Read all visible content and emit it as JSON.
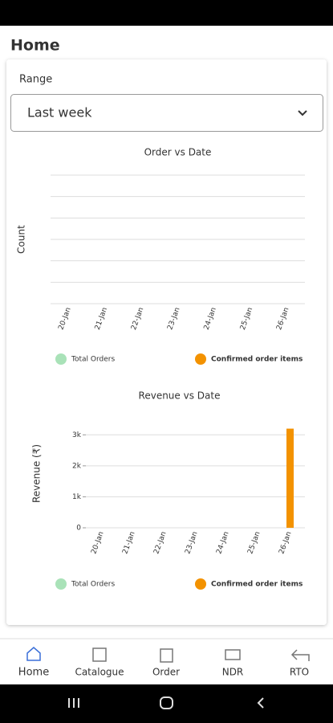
{
  "header": {
    "title": "Home"
  },
  "range": {
    "label": "Range",
    "value": "Last week"
  },
  "chart_data": [
    {
      "type": "bar",
      "title": "Order vs Date",
      "y_label": "Count",
      "categories": [
        "20-Jan",
        "21-Jan",
        "22-Jan",
        "23-Jan",
        "24-Jan",
        "25-Jan",
        "26-Jan"
      ],
      "series": [
        {
          "name": "Total Orders",
          "color": "#a9e2b8"
        },
        {
          "name": "Confirmed order items",
          "color": "#f39200"
        }
      ]
    },
    {
      "type": "bar",
      "title": "Revenue vs Date",
      "y_label": "Revenue (₹)",
      "categories": [
        "20-Jan",
        "21-Jan",
        "22-Jan",
        "23-Jan",
        "24-Jan",
        "25-Jan",
        "26-Jan"
      ],
      "series": [
        {
          "name": "Total Orders",
          "color": "#a9e2b8",
          "values": [
            0,
            0,
            0,
            0,
            0,
            0,
            0
          ]
        },
        {
          "name": "Confirmed order items",
          "color": "#f39200",
          "values": [
            0,
            0,
            0,
            0,
            0,
            0,
            3200
          ]
        }
      ],
      "ylim": [
        0,
        3500
      ],
      "yticks": [
        {
          "value": 0,
          "label": "0"
        },
        {
          "value": 1000,
          "label": "1k"
        },
        {
          "value": 2000,
          "label": "2k"
        },
        {
          "value": 3000,
          "label": "3k"
        }
      ],
      "grid": true
    }
  ],
  "nav": [
    "Home",
    "Catalogue",
    "Order",
    "NDR",
    "RTO"
  ]
}
